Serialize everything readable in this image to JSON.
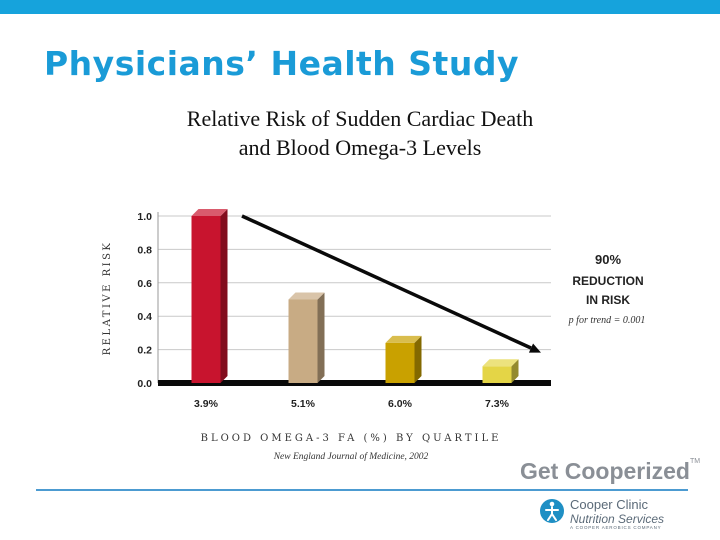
{
  "slide": {
    "title": "Physicians’ Health Study",
    "subtitle_line1": "Relative Risk of Sudden Cardiac Death",
    "subtitle_line2": "and Blood Omega-3 Levels"
  },
  "chart_data": {
    "type": "bar",
    "categories": [
      "3.9%",
      "5.1%",
      "6.0%",
      "7.3%"
    ],
    "values": [
      1.0,
      0.5,
      0.24,
      0.1
    ],
    "bar_colors": [
      "#c8142e",
      "#c8ab84",
      "#c9a100",
      "#e4d546"
    ],
    "ylabel": "RELATIVE RISK",
    "xlabel": "BLOOD OMEGA-3 FA (%) BY QUARTILE",
    "yticks": [
      "0.0",
      "0.2",
      "0.4",
      "0.6",
      "0.8",
      "1.0"
    ],
    "ylim": [
      0,
      1.0
    ],
    "trend_line": {
      "from": 1.0,
      "to": 0.2
    },
    "annotation": {
      "line1": "90%",
      "line2": "REDUCTION",
      "line3": "IN RISK",
      "trend_note": "p for trend = 0.001"
    },
    "source": "New England Journal of Medicine, 2002"
  },
  "branding": {
    "get_cooperized": "Get Cooperized",
    "tm": "TM",
    "logo_line1": "Cooper Clinic",
    "logo_line2": "Nutrition Services",
    "logo_tagline": "A COOPER AEROBICS COMPANY",
    "accent": "#1a9bd7"
  }
}
